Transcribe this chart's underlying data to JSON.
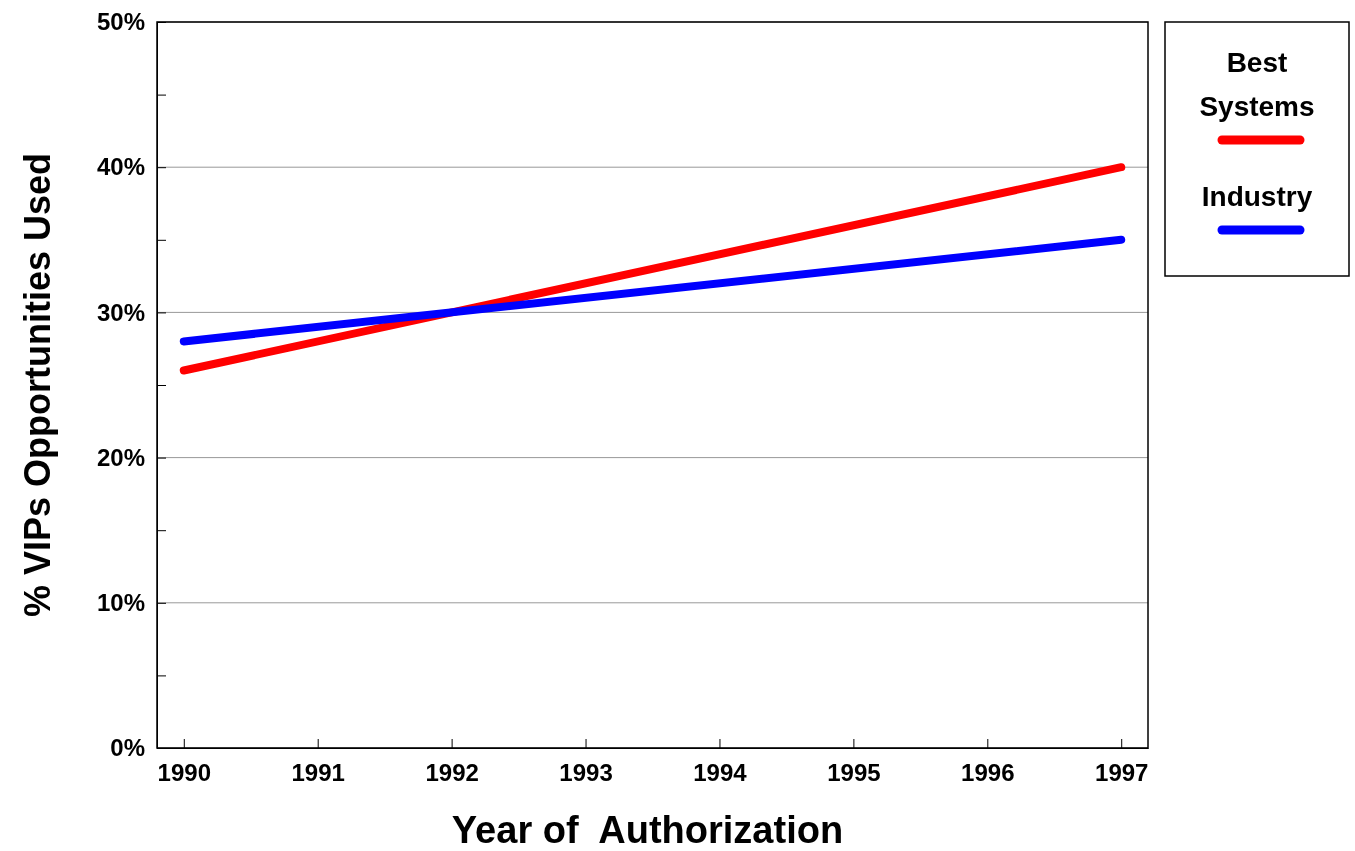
{
  "chart_data": {
    "type": "line",
    "xlabel": "Year of  Authorization",
    "ylabel": "% VIPs Opportunities Used",
    "x": [
      1990,
      1997
    ],
    "series": [
      {
        "name": "Best Systems",
        "color": "#ff0000",
        "values": [
          26,
          40
        ]
      },
      {
        "name": "Industry",
        "color": "#0000ff",
        "values": [
          28,
          35
        ]
      }
    ],
    "xlim": [
      1989.8,
      1997.2
    ],
    "xticks": [
      1990,
      1991,
      1992,
      1993,
      1994,
      1995,
      1996,
      1997
    ],
    "ylim": [
      0,
      50
    ],
    "yticks": [
      {
        "value": 0,
        "label": "0%"
      },
      {
        "value": 5,
        "label": null
      },
      {
        "value": 10,
        "label": "10%"
      },
      {
        "value": 15,
        "label": null
      },
      {
        "value": 20,
        "label": "20%"
      },
      {
        "value": 25,
        "label": null
      },
      {
        "value": 30,
        "label": "30%"
      },
      {
        "value": 35,
        "label": null
      },
      {
        "value": 40,
        "label": "40%"
      },
      {
        "value": 45,
        "label": null
      },
      {
        "value": 50,
        "label": "50%"
      }
    ],
    "grid": "y",
    "legend": "top right",
    "marker": "none",
    "line_style": "solid"
  }
}
